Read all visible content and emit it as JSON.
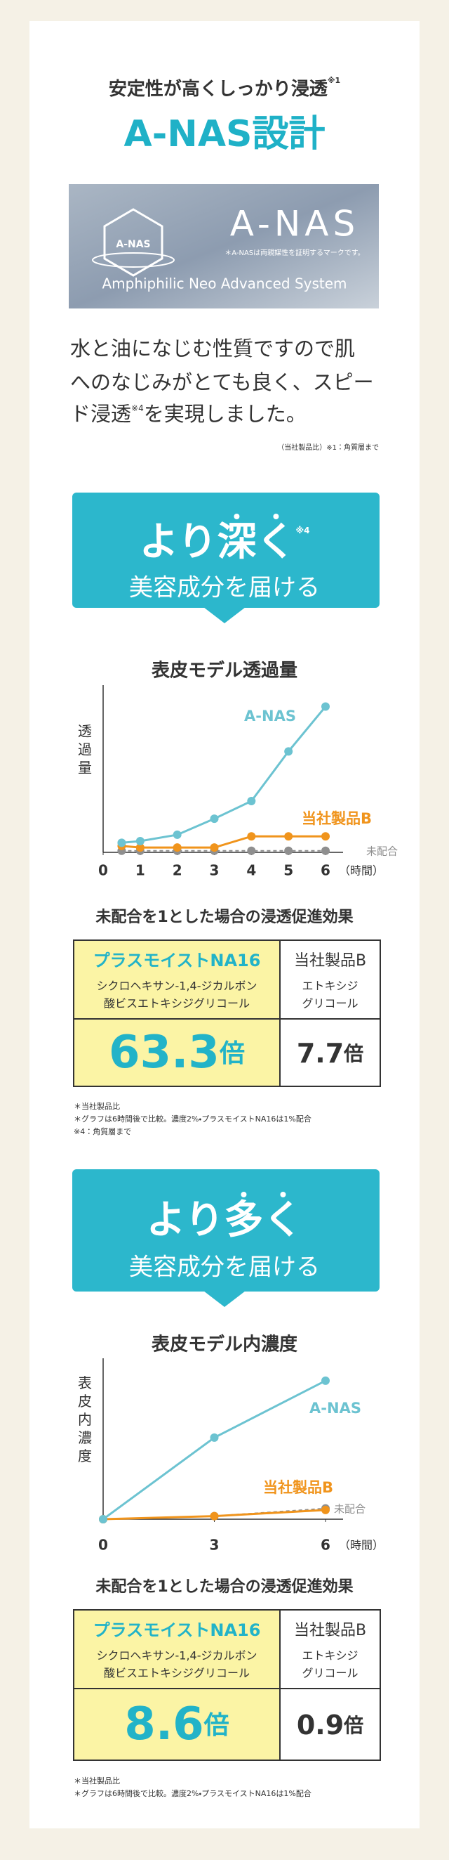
{
  "header": {
    "title": "安定性が高くしっかり浸透",
    "title_note": "※1",
    "heading": "A-NAS設計"
  },
  "banner": {
    "logo": "A-NAS",
    "name": "A-NAS",
    "note": "＊A-NASは両親媒性を証明するマークです。",
    "subtitle": "Amphiphilic Neo Advanced System"
  },
  "intro": {
    "lines": [
      "水と油になじむ性質ですので肌",
      "へのなじみがとても良く、スピー"
    ],
    "last_line": [
      "ド浸透",
      "※4",
      "を実現しました。"
    ],
    "footnote": "（当社製品比）※1：角質層まで"
  },
  "sections": [
    {
      "callout": {
        "lead": "より",
        "emphasis": "深く",
        "mark": "※4",
        "line2": "美容成分を届ける"
      },
      "heading": "未配合を1とした場合の浸透促進効果",
      "table": {
        "columns": [
          {
            "name": "プラスモイストNA16",
            "description": [
              "シクロヘキサン-1,4-ジカルボン",
              "酸ビスエトキシジグリコール"
            ],
            "value": "63.3",
            "unit": "倍"
          },
          {
            "name": "当社製品B",
            "description": [
              "エトキシジ",
              "グリコール"
            ],
            "value": "7.7",
            "unit": "倍"
          }
        ]
      },
      "notes": [
        "＊当社製品比",
        "＊グラフは6時間後で比較。濃度2%・プラスモイストNA16は1%配合",
        "※4：角質層まで"
      ]
    },
    {
      "callout": {
        "lead": "より",
        "emphasis": "多く",
        "line2": "美容成分を届ける"
      },
      "heading": "未配合を1とした場合の浸透促進効果",
      "table": {
        "columns": [
          {
            "name": "プラスモイストNA16",
            "description": [
              "シクロヘキサン-1,4-ジカルボン",
              "酸ビスエトキシジグリコール"
            ],
            "value": "8.6",
            "unit": "倍"
          },
          {
            "name": "当社製品B",
            "description": [
              "エトキシジ",
              "グリコール"
            ],
            "value": "0.9",
            "unit": "倍"
          }
        ]
      },
      "notes": [
        "＊当社製品比",
        "＊グラフは6時間後で比較。濃度2%・プラスモイストNA16は1%配合"
      ]
    }
  ],
  "chart_data": [
    {
      "type": "line",
      "title": "表皮モデル透過量",
      "y_label": "透過量",
      "x_label": "（時間）",
      "x": [
        0.5,
        1,
        2,
        3,
        4,
        5,
        6
      ],
      "xlim": [
        0,
        6
      ],
      "xticks": [
        0,
        1,
        2,
        3,
        4,
        5,
        6
      ],
      "ylim": [
        0,
        100
      ],
      "series": [
        {
          "name": "未配合",
          "color": "#8f8f8f",
          "dashed": true,
          "values": [
            1,
            1,
            1,
            1,
            1,
            1,
            1
          ]
        },
        {
          "name": "当社製品B",
          "color": "#f0941c",
          "values": [
            4,
            3,
            3,
            3,
            10,
            10,
            10
          ]
        },
        {
          "name": "A-NAS",
          "color": "#6cc3d1",
          "values": [
            6,
            7,
            11,
            21,
            32,
            63,
            91
          ]
        }
      ]
    },
    {
      "type": "line",
      "title": "表皮モデル内濃度",
      "y_label": "表皮内濃度",
      "x_label": "（時間）",
      "x": [
        0,
        3,
        6
      ],
      "xlim": [
        0,
        6
      ],
      "xticks": [
        0,
        3,
        6
      ],
      "ylim": [
        0,
        100
      ],
      "series": [
        {
          "name": "未配合",
          "color": "#8f8f8f",
          "dashed": true,
          "values": [
            0,
            2,
            7
          ]
        },
        {
          "name": "当社製品B",
          "color": "#f0941c",
          "values": [
            0,
            2,
            6
          ]
        },
        {
          "name": "A-NAS",
          "color": "#6cc3d1",
          "values": [
            0,
            53,
            90
          ]
        }
      ]
    }
  ]
}
